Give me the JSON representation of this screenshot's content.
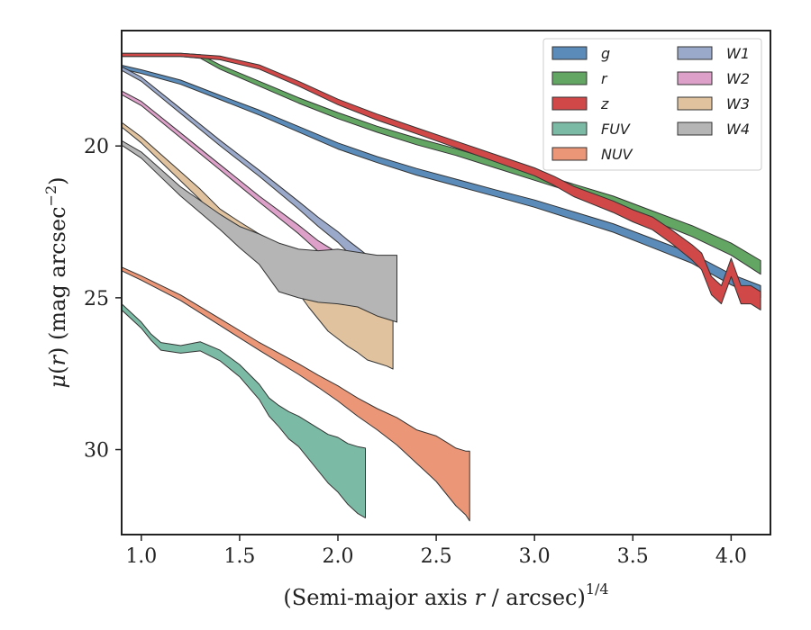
{
  "chart_data": {
    "type": "area",
    "title": "",
    "xlabel": "(Semi-major axis r / arcsec)",
    "xlabel_parts": {
      "pre": "(Semi-major axis ",
      "var": "r",
      "post": " / arcsec)",
      "sup": "1/4"
    },
    "ylabel": "μ(r) (mag arcsec−2)",
    "ylabel_parts": {
      "mu": "μ",
      "open": "(",
      "var": "r",
      "close": ") (mag arcsec",
      "sup": "−2",
      "end": ")"
    },
    "xlim": [
      0.9,
      4.2
    ],
    "ylim": [
      32.8,
      16.2
    ],
    "y_inverted": true,
    "xticks": [
      {
        "v": 1.0,
        "label": "1.0"
      },
      {
        "v": 1.5,
        "label": "1.5"
      },
      {
        "v": 2.0,
        "label": "2.0"
      },
      {
        "v": 2.5,
        "label": "2.5"
      },
      {
        "v": 3.0,
        "label": "3.0"
      },
      {
        "v": 3.5,
        "label": "3.5"
      },
      {
        "v": 4.0,
        "label": "4.0"
      }
    ],
    "yticks": [
      {
        "v": 20,
        "label": "20"
      },
      {
        "v": 25,
        "label": "25"
      },
      {
        "v": 30,
        "label": "30"
      }
    ],
    "grid": false,
    "legend_position": "top-right",
    "legend_columns": 2,
    "series": [
      {
        "name": "g",
        "color": "#5b8bb8",
        "x": [
          0.9,
          1.0,
          1.2,
          1.4,
          1.6,
          1.8,
          2.0,
          2.2,
          2.4,
          2.6,
          2.8,
          3.0,
          3.2,
          3.4,
          3.6,
          3.8,
          4.0,
          4.15
        ],
        "y": [
          17.4,
          17.55,
          17.9,
          18.4,
          18.9,
          19.45,
          20.0,
          20.45,
          20.85,
          21.2,
          21.55,
          21.9,
          22.3,
          22.7,
          23.2,
          23.7,
          24.4,
          24.8
        ],
        "w": [
          0.12,
          0.12,
          0.14,
          0.14,
          0.16,
          0.18,
          0.2,
          0.2,
          0.22,
          0.22,
          0.22,
          0.24,
          0.26,
          0.28,
          0.3,
          0.32,
          0.35,
          0.4
        ]
      },
      {
        "name": "r",
        "color": "#63a563",
        "x": [
          0.9,
          1.2,
          1.3,
          1.4,
          1.6,
          1.8,
          2.0,
          2.2,
          2.4,
          2.6,
          2.8,
          3.0,
          3.2,
          3.4,
          3.6,
          3.8,
          4.0,
          4.15
        ],
        "y": [
          17.0,
          17.0,
          17.05,
          17.4,
          17.95,
          18.5,
          19.0,
          19.45,
          19.85,
          20.2,
          20.6,
          21.0,
          21.4,
          21.8,
          22.3,
          22.8,
          23.4,
          24.0
        ],
        "w": [
          0.1,
          0.1,
          0.12,
          0.14,
          0.16,
          0.18,
          0.2,
          0.2,
          0.22,
          0.22,
          0.24,
          0.26,
          0.28,
          0.3,
          0.32,
          0.36,
          0.4,
          0.45
        ]
      },
      {
        "name": "z",
        "color": "#d04848",
        "x": [
          0.9,
          1.2,
          1.4,
          1.6,
          1.8,
          2.0,
          2.2,
          2.4,
          2.6,
          2.8,
          3.0,
          3.1,
          3.2,
          3.3,
          3.4,
          3.5,
          3.6,
          3.7,
          3.8,
          3.85,
          3.9,
          3.95,
          4.0,
          4.05,
          4.1,
          4.15
        ],
        "y": [
          17.0,
          17.0,
          17.1,
          17.4,
          17.95,
          18.55,
          19.05,
          19.5,
          19.95,
          20.4,
          20.85,
          21.15,
          21.5,
          21.75,
          22.0,
          22.3,
          22.55,
          23.0,
          23.5,
          23.8,
          24.6,
          24.9,
          24.0,
          24.9,
          24.9,
          25.1
        ],
        "w": [
          0.1,
          0.1,
          0.12,
          0.14,
          0.16,
          0.18,
          0.2,
          0.2,
          0.22,
          0.24,
          0.26,
          0.3,
          0.34,
          0.36,
          0.38,
          0.4,
          0.42,
          0.45,
          0.5,
          0.55,
          0.6,
          0.6,
          0.6,
          0.6,
          0.6,
          0.6
        ]
      },
      {
        "name": "FUV",
        "color": "#7bbba5",
        "x": [
          0.9,
          1.0,
          1.05,
          1.1,
          1.2,
          1.3,
          1.4,
          1.5,
          1.6,
          1.65,
          1.7,
          1.75,
          1.8,
          1.85,
          1.9,
          1.95,
          2.0,
          2.05,
          2.1,
          2.14
        ],
        "y": [
          25.3,
          25.9,
          26.3,
          26.6,
          26.7,
          26.6,
          26.9,
          27.4,
          28.1,
          28.6,
          28.9,
          29.2,
          29.4,
          29.7,
          30.0,
          30.3,
          30.5,
          30.8,
          31.0,
          31.1
        ],
        "w": [
          0.2,
          0.2,
          0.2,
          0.25,
          0.25,
          0.3,
          0.35,
          0.4,
          0.5,
          0.6,
          0.7,
          0.9,
          1.0,
          1.2,
          1.4,
          1.6,
          1.8,
          2.0,
          2.2,
          2.3
        ]
      },
      {
        "name": "NUV",
        "color": "#eb9677",
        "x": [
          0.9,
          1.0,
          1.2,
          1.4,
          1.6,
          1.8,
          1.9,
          2.0,
          2.1,
          2.2,
          2.3,
          2.4,
          2.45,
          2.5,
          2.55,
          2.6,
          2.65,
          2.67
        ],
        "y": [
          24.05,
          24.35,
          25.0,
          25.8,
          26.6,
          27.35,
          27.75,
          28.15,
          28.6,
          29.0,
          29.4,
          29.9,
          30.1,
          30.3,
          30.6,
          30.9,
          31.1,
          31.2
        ],
        "w": [
          0.12,
          0.14,
          0.18,
          0.22,
          0.26,
          0.35,
          0.4,
          0.5,
          0.6,
          0.7,
          0.9,
          1.1,
          1.3,
          1.5,
          1.7,
          1.9,
          2.1,
          2.3
        ]
      },
      {
        "name": "W1",
        "color": "#9aa8c9",
        "x": [
          0.9,
          1.0,
          1.2,
          1.4,
          1.6,
          1.8,
          1.9,
          2.0,
          2.05,
          2.1,
          2.15,
          2.2,
          2.25,
          2.3
        ],
        "y": [
          17.45,
          17.8,
          18.85,
          19.9,
          20.9,
          21.95,
          22.5,
          23.0,
          23.3,
          23.6,
          23.9,
          24.2,
          24.6,
          25.0
        ],
        "w": [
          0.12,
          0.14,
          0.16,
          0.18,
          0.2,
          0.25,
          0.3,
          0.35,
          0.4,
          0.5,
          0.6,
          0.7,
          0.8,
          0.9
        ]
      },
      {
        "name": "W2",
        "color": "#dda0c9",
        "x": [
          0.9,
          1.0,
          1.2,
          1.4,
          1.6,
          1.8,
          1.9,
          2.0,
          2.05,
          2.1,
          2.15,
          2.2,
          2.25,
          2.3
        ],
        "y": [
          18.25,
          18.6,
          19.65,
          20.7,
          21.75,
          22.75,
          23.3,
          23.75,
          24.05,
          24.35,
          24.6,
          24.9,
          25.1,
          25.3
        ],
        "w": [
          0.12,
          0.14,
          0.16,
          0.18,
          0.2,
          0.28,
          0.35,
          0.45,
          0.55,
          0.6,
          0.7,
          0.8,
          0.9,
          1.0
        ]
      },
      {
        "name": "W3",
        "color": "#e0c39e",
        "x": [
          0.9,
          1.0,
          1.1,
          1.2,
          1.3,
          1.4,
          1.5,
          1.6,
          1.7,
          1.8,
          1.85,
          1.9,
          1.95,
          2.0,
          2.05,
          2.1,
          2.15,
          2.2,
          2.25,
          2.28
        ],
        "y": [
          19.3,
          19.8,
          20.4,
          21.0,
          21.6,
          22.3,
          22.8,
          23.3,
          23.8,
          24.2,
          24.5,
          24.8,
          25.1,
          25.3,
          25.5,
          25.7,
          25.9,
          26.0,
          26.1,
          26.2
        ],
        "w": [
          0.15,
          0.2,
          0.25,
          0.3,
          0.35,
          0.45,
          0.6,
          0.8,
          1.0,
          1.3,
          1.6,
          1.8,
          2.0,
          2.1,
          2.2,
          2.2,
          2.3,
          2.3,
          2.3,
          2.3
        ]
      },
      {
        "name": "W4",
        "color": "#b5b5b5",
        "x": [
          0.9,
          1.0,
          1.1,
          1.2,
          1.3,
          1.4,
          1.5,
          1.6,
          1.65,
          1.7,
          1.75,
          1.8,
          1.9,
          2.0,
          2.1,
          2.2,
          2.3
        ],
        "y": [
          19.9,
          20.3,
          20.9,
          21.5,
          22.0,
          22.5,
          23.0,
          23.4,
          23.7,
          24.0,
          24.1,
          24.2,
          24.3,
          24.3,
          24.4,
          24.6,
          24.7
        ],
        "w": [
          0.15,
          0.2,
          0.25,
          0.3,
          0.4,
          0.5,
          0.7,
          1.0,
          1.3,
          1.6,
          1.6,
          1.6,
          1.7,
          1.8,
          1.8,
          2.0,
          2.2
        ]
      }
    ]
  }
}
